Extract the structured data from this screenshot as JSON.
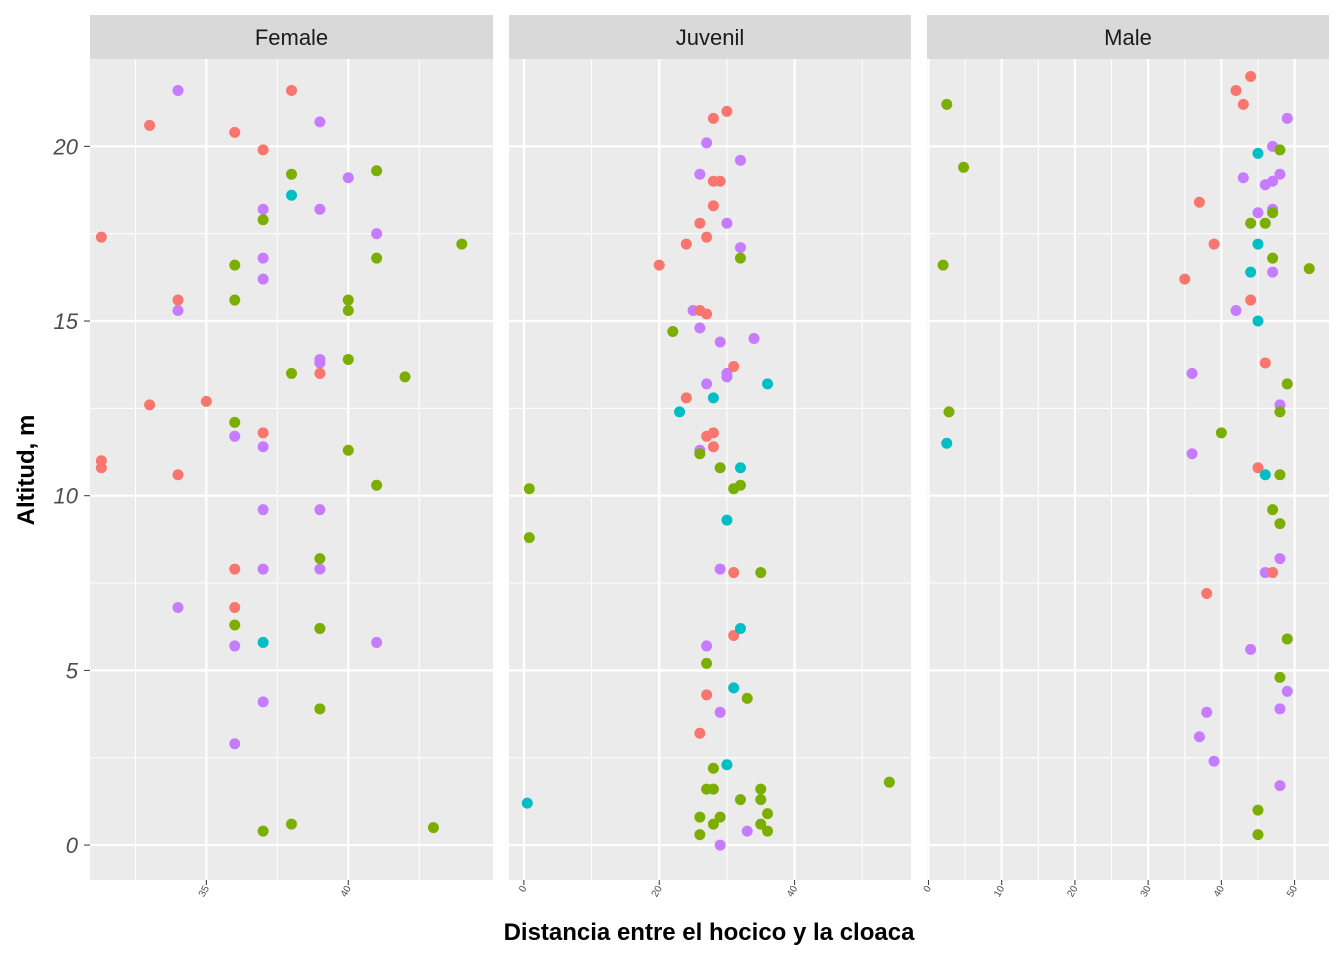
{
  "chart_data": {
    "type": "scatter",
    "xlabel": "Distancia entre el hocico y la cloaca",
    "ylabel": "Altitud, m",
    "ylim": [
      -1,
      22.5
    ],
    "y_ticks": [
      0,
      5,
      10,
      15,
      20
    ],
    "grid": true,
    "legend": "none",
    "colors": {
      "red": "#F8766D",
      "green": "#7CAE00",
      "teal": "#00BFC4",
      "purple": "#C77CFF",
      "panel_bg": "#EBEBEB",
      "strip_bg": "#D9D9D9",
      "grid": "#FFFFFF"
    },
    "facets": [
      {
        "name": "Female",
        "xlim": [
          30.9,
          45.1
        ],
        "x_ticks": [
          35,
          40
        ],
        "points": [
          {
            "x": 31.3,
            "y": 17.4,
            "c": "red"
          },
          {
            "x": 31.3,
            "y": 11.0,
            "c": "red"
          },
          {
            "x": 31.3,
            "y": 10.8,
            "c": "red"
          },
          {
            "x": 33,
            "y": 20.6,
            "c": "red"
          },
          {
            "x": 33,
            "y": 12.6,
            "c": "red"
          },
          {
            "x": 34,
            "y": 21.6,
            "c": "purple"
          },
          {
            "x": 34,
            "y": 15.6,
            "c": "red"
          },
          {
            "x": 34,
            "y": 15.3,
            "c": "purple"
          },
          {
            "x": 34,
            "y": 10.6,
            "c": "red"
          },
          {
            "x": 34,
            "y": 6.8,
            "c": "purple"
          },
          {
            "x": 35,
            "y": 12.7,
            "c": "red"
          },
          {
            "x": 36,
            "y": 20.4,
            "c": "red"
          },
          {
            "x": 36,
            "y": 16.6,
            "c": "green"
          },
          {
            "x": 36,
            "y": 15.6,
            "c": "green"
          },
          {
            "x": 36,
            "y": 12.1,
            "c": "green"
          },
          {
            "x": 36,
            "y": 11.7,
            "c": "purple"
          },
          {
            "x": 36,
            "y": 7.9,
            "c": "red"
          },
          {
            "x": 36,
            "y": 6.8,
            "c": "red"
          },
          {
            "x": 36,
            "y": 6.3,
            "c": "green"
          },
          {
            "x": 36,
            "y": 5.7,
            "c": "purple"
          },
          {
            "x": 36,
            "y": 2.9,
            "c": "purple"
          },
          {
            "x": 37,
            "y": 19.9,
            "c": "red"
          },
          {
            "x": 37,
            "y": 18.2,
            "c": "purple"
          },
          {
            "x": 37,
            "y": 17.9,
            "c": "green"
          },
          {
            "x": 37,
            "y": 16.8,
            "c": "purple"
          },
          {
            "x": 37,
            "y": 16.2,
            "c": "purple"
          },
          {
            "x": 37,
            "y": 11.8,
            "c": "red"
          },
          {
            "x": 37,
            "y": 11.4,
            "c": "purple"
          },
          {
            "x": 37,
            "y": 9.6,
            "c": "purple"
          },
          {
            "x": 37,
            "y": 7.9,
            "c": "purple"
          },
          {
            "x": 37,
            "y": 5.8,
            "c": "teal"
          },
          {
            "x": 37,
            "y": 4.1,
            "c": "purple"
          },
          {
            "x": 37,
            "y": 0.4,
            "c": "green"
          },
          {
            "x": 38,
            "y": 21.6,
            "c": "red"
          },
          {
            "x": 38,
            "y": 19.2,
            "c": "green"
          },
          {
            "x": 38,
            "y": 18.6,
            "c": "teal"
          },
          {
            "x": 38,
            "y": 13.5,
            "c": "green"
          },
          {
            "x": 38,
            "y": 0.6,
            "c": "green"
          },
          {
            "x": 39,
            "y": 20.7,
            "c": "purple"
          },
          {
            "x": 39,
            "y": 18.2,
            "c": "purple"
          },
          {
            "x": 39,
            "y": 13.9,
            "c": "purple"
          },
          {
            "x": 39,
            "y": 13.8,
            "c": "purple"
          },
          {
            "x": 39,
            "y": 13.5,
            "c": "red"
          },
          {
            "x": 39,
            "y": 9.6,
            "c": "purple"
          },
          {
            "x": 39,
            "y": 8.2,
            "c": "green"
          },
          {
            "x": 39,
            "y": 7.9,
            "c": "purple"
          },
          {
            "x": 39,
            "y": 6.2,
            "c": "purple"
          },
          {
            "x": 39,
            "y": 6.2,
            "c": "green"
          },
          {
            "x": 39,
            "y": 3.9,
            "c": "green"
          },
          {
            "x": 40,
            "y": 19.1,
            "c": "purple"
          },
          {
            "x": 40,
            "y": 15.6,
            "c": "green"
          },
          {
            "x": 40,
            "y": 15.3,
            "c": "green"
          },
          {
            "x": 40,
            "y": 13.9,
            "c": "green"
          },
          {
            "x": 40,
            "y": 11.3,
            "c": "green"
          },
          {
            "x": 41,
            "y": 19.3,
            "c": "green"
          },
          {
            "x": 41,
            "y": 17.5,
            "c": "purple"
          },
          {
            "x": 41,
            "y": 16.8,
            "c": "green"
          },
          {
            "x": 41,
            "y": 10.3,
            "c": "green"
          },
          {
            "x": 41,
            "y": 5.8,
            "c": "purple"
          },
          {
            "x": 42,
            "y": 13.4,
            "c": "green"
          },
          {
            "x": 43,
            "y": 0.5,
            "c": "green"
          },
          {
            "x": 44,
            "y": 17.2,
            "c": "green"
          }
        ]
      },
      {
        "name": "Juvenil",
        "xlim": [
          -2.2,
          57.2
        ],
        "x_ticks": [
          0,
          20,
          40
        ],
        "points": [
          {
            "x": 0.5,
            "y": 1.2,
            "c": "teal"
          },
          {
            "x": 0.8,
            "y": 10.2,
            "c": "green"
          },
          {
            "x": 0.8,
            "y": 8.8,
            "c": "green"
          },
          {
            "x": 20,
            "y": 16.6,
            "c": "red"
          },
          {
            "x": 22,
            "y": 14.7,
            "c": "green"
          },
          {
            "x": 23,
            "y": 12.4,
            "c": "teal"
          },
          {
            "x": 24,
            "y": 17.2,
            "c": "red"
          },
          {
            "x": 24,
            "y": 12.8,
            "c": "red"
          },
          {
            "x": 25,
            "y": 15.3,
            "c": "purple"
          },
          {
            "x": 26,
            "y": 19.2,
            "c": "purple"
          },
          {
            "x": 26,
            "y": 17.8,
            "c": "red"
          },
          {
            "x": 26,
            "y": 15.3,
            "c": "red"
          },
          {
            "x": 26,
            "y": 14.8,
            "c": "purple"
          },
          {
            "x": 26,
            "y": 11.3,
            "c": "purple"
          },
          {
            "x": 26,
            "y": 11.2,
            "c": "green"
          },
          {
            "x": 26,
            "y": 3.2,
            "c": "red"
          },
          {
            "x": 26,
            "y": 0.8,
            "c": "green"
          },
          {
            "x": 26,
            "y": 0.3,
            "c": "green"
          },
          {
            "x": 27,
            "y": 20.1,
            "c": "purple"
          },
          {
            "x": 27,
            "y": 17.4,
            "c": "red"
          },
          {
            "x": 27,
            "y": 15.2,
            "c": "red"
          },
          {
            "x": 27,
            "y": 13.2,
            "c": "purple"
          },
          {
            "x": 27,
            "y": 11.7,
            "c": "red"
          },
          {
            "x": 27,
            "y": 5.7,
            "c": "purple"
          },
          {
            "x": 27,
            "y": 5.2,
            "c": "green"
          },
          {
            "x": 27,
            "y": 4.3,
            "c": "red"
          },
          {
            "x": 27,
            "y": 1.6,
            "c": "green"
          },
          {
            "x": 28,
            "y": 20.8,
            "c": "red"
          },
          {
            "x": 28,
            "y": 19.0,
            "c": "red"
          },
          {
            "x": 28,
            "y": 18.3,
            "c": "red"
          },
          {
            "x": 28,
            "y": 12.8,
            "c": "teal"
          },
          {
            "x": 28,
            "y": 11.8,
            "c": "red"
          },
          {
            "x": 28,
            "y": 11.4,
            "c": "red"
          },
          {
            "x": 28,
            "y": 2.2,
            "c": "green"
          },
          {
            "x": 28,
            "y": 1.6,
            "c": "green"
          },
          {
            "x": 28,
            "y": 0.6,
            "c": "green"
          },
          {
            "x": 29,
            "y": 19.0,
            "c": "red"
          },
          {
            "x": 29,
            "y": 14.4,
            "c": "purple"
          },
          {
            "x": 29,
            "y": 10.8,
            "c": "green"
          },
          {
            "x": 29,
            "y": 7.9,
            "c": "purple"
          },
          {
            "x": 29,
            "y": 3.8,
            "c": "purple"
          },
          {
            "x": 29,
            "y": 0.8,
            "c": "green"
          },
          {
            "x": 29,
            "y": 0.0,
            "c": "purple"
          },
          {
            "x": 30,
            "y": 21.0,
            "c": "red"
          },
          {
            "x": 30,
            "y": 17.8,
            "c": "purple"
          },
          {
            "x": 30,
            "y": 13.5,
            "c": "purple"
          },
          {
            "x": 30,
            "y": 13.4,
            "c": "purple"
          },
          {
            "x": 30,
            "y": 9.3,
            "c": "teal"
          },
          {
            "x": 30,
            "y": 2.3,
            "c": "teal"
          },
          {
            "x": 31,
            "y": 13.7,
            "c": "red"
          },
          {
            "x": 31,
            "y": 10.2,
            "c": "green"
          },
          {
            "x": 31,
            "y": 7.8,
            "c": "red"
          },
          {
            "x": 31,
            "y": 6.0,
            "c": "red"
          },
          {
            "x": 31,
            "y": 4.5,
            "c": "teal"
          },
          {
            "x": 32,
            "y": 19.6,
            "c": "purple"
          },
          {
            "x": 32,
            "y": 17.1,
            "c": "purple"
          },
          {
            "x": 32,
            "y": 16.8,
            "c": "green"
          },
          {
            "x": 32,
            "y": 10.8,
            "c": "teal"
          },
          {
            "x": 32,
            "y": 10.3,
            "c": "green"
          },
          {
            "x": 32,
            "y": 6.2,
            "c": "teal"
          },
          {
            "x": 32,
            "y": 1.3,
            "c": "green"
          },
          {
            "x": 33,
            "y": 4.2,
            "c": "green"
          },
          {
            "x": 33,
            "y": 0.4,
            "c": "purple"
          },
          {
            "x": 34,
            "y": 14.5,
            "c": "purple"
          },
          {
            "x": 35,
            "y": 7.8,
            "c": "green"
          },
          {
            "x": 35,
            "y": 1.6,
            "c": "green"
          },
          {
            "x": 35,
            "y": 1.3,
            "c": "green"
          },
          {
            "x": 35,
            "y": 0.6,
            "c": "green"
          },
          {
            "x": 36,
            "y": 13.2,
            "c": "teal"
          },
          {
            "x": 36,
            "y": 0.9,
            "c": "green"
          },
          {
            "x": 36,
            "y": 0.4,
            "c": "green"
          },
          {
            "x": 54,
            "y": 1.8,
            "c": "green"
          }
        ]
      },
      {
        "name": "Male",
        "xlim": [
          -0.2,
          54.7
        ],
        "x_ticks": [
          0,
          10,
          20,
          30,
          40,
          50
        ],
        "points": [
          {
            "x": 2,
            "y": 16.6,
            "c": "green"
          },
          {
            "x": 2.5,
            "y": 21.2,
            "c": "green"
          },
          {
            "x": 2.5,
            "y": 11.5,
            "c": "teal"
          },
          {
            "x": 2.8,
            "y": 12.4,
            "c": "green"
          },
          {
            "x": 4.8,
            "y": 19.4,
            "c": "green"
          },
          {
            "x": 35,
            "y": 16.2,
            "c": "red"
          },
          {
            "x": 36,
            "y": 13.5,
            "c": "purple"
          },
          {
            "x": 36,
            "y": 11.2,
            "c": "purple"
          },
          {
            "x": 37,
            "y": 18.4,
            "c": "red"
          },
          {
            "x": 37,
            "y": 3.1,
            "c": "purple"
          },
          {
            "x": 38,
            "y": 7.2,
            "c": "red"
          },
          {
            "x": 38,
            "y": 3.8,
            "c": "purple"
          },
          {
            "x": 39,
            "y": 17.2,
            "c": "red"
          },
          {
            "x": 39,
            "y": 2.4,
            "c": "purple"
          },
          {
            "x": 40,
            "y": 11.8,
            "c": "green"
          },
          {
            "x": 42,
            "y": 21.6,
            "c": "red"
          },
          {
            "x": 42,
            "y": 15.3,
            "c": "purple"
          },
          {
            "x": 43,
            "y": 21.2,
            "c": "red"
          },
          {
            "x": 43,
            "y": 19.1,
            "c": "purple"
          },
          {
            "x": 44,
            "y": 22.0,
            "c": "red"
          },
          {
            "x": 44,
            "y": 17.8,
            "c": "green"
          },
          {
            "x": 44,
            "y": 16.4,
            "c": "teal"
          },
          {
            "x": 44,
            "y": 15.6,
            "c": "red"
          },
          {
            "x": 44,
            "y": 5.6,
            "c": "purple"
          },
          {
            "x": 45,
            "y": 19.8,
            "c": "teal"
          },
          {
            "x": 45,
            "y": 18.1,
            "c": "purple"
          },
          {
            "x": 45,
            "y": 17.2,
            "c": "teal"
          },
          {
            "x": 45,
            "y": 15.0,
            "c": "teal"
          },
          {
            "x": 45,
            "y": 10.8,
            "c": "red"
          },
          {
            "x": 45,
            "y": 1.0,
            "c": "green"
          },
          {
            "x": 45,
            "y": 0.3,
            "c": "green"
          },
          {
            "x": 46,
            "y": 18.9,
            "c": "purple"
          },
          {
            "x": 46,
            "y": 17.8,
            "c": "green"
          },
          {
            "x": 46,
            "y": 13.8,
            "c": "red"
          },
          {
            "x": 46,
            "y": 10.6,
            "c": "teal"
          },
          {
            "x": 46,
            "y": 7.8,
            "c": "purple"
          },
          {
            "x": 47,
            "y": 20.0,
            "c": "purple"
          },
          {
            "x": 47,
            "y": 19.0,
            "c": "purple"
          },
          {
            "x": 47,
            "y": 18.2,
            "c": "purple"
          },
          {
            "x": 47,
            "y": 18.1,
            "c": "green"
          },
          {
            "x": 47,
            "y": 16.8,
            "c": "green"
          },
          {
            "x": 47,
            "y": 16.4,
            "c": "purple"
          },
          {
            "x": 47,
            "y": 9.6,
            "c": "green"
          },
          {
            "x": 47,
            "y": 7.8,
            "c": "red"
          },
          {
            "x": 48,
            "y": 19.9,
            "c": "green"
          },
          {
            "x": 48,
            "y": 19.2,
            "c": "purple"
          },
          {
            "x": 48,
            "y": 12.6,
            "c": "purple"
          },
          {
            "x": 48,
            "y": 12.4,
            "c": "green"
          },
          {
            "x": 48,
            "y": 10.6,
            "c": "green"
          },
          {
            "x": 48,
            "y": 9.2,
            "c": "green"
          },
          {
            "x": 48,
            "y": 8.2,
            "c": "purple"
          },
          {
            "x": 48,
            "y": 4.8,
            "c": "green"
          },
          {
            "x": 48,
            "y": 3.9,
            "c": "purple"
          },
          {
            "x": 48,
            "y": 1.7,
            "c": "purple"
          },
          {
            "x": 49,
            "y": 20.8,
            "c": "purple"
          },
          {
            "x": 49,
            "y": 13.2,
            "c": "green"
          },
          {
            "x": 49,
            "y": 5.9,
            "c": "green"
          },
          {
            "x": 49,
            "y": 4.4,
            "c": "purple"
          },
          {
            "x": 52,
            "y": 16.5,
            "c": "green"
          }
        ]
      }
    ]
  }
}
